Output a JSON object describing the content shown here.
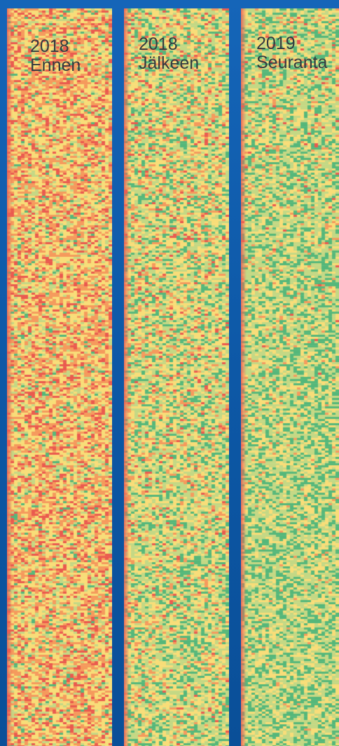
{
  "chart_data": {
    "type": "heatmap",
    "colors": {
      "low": "#ea5a4e",
      "mid_low": "#f59a5c",
      "mid": "#f8dd78",
      "mid_high": "#c4d884",
      "high": "#55b77a",
      "background": "#0f5aa8"
    },
    "panels": [
      {
        "year": "2018",
        "phase": "Ennen",
        "distribution": [
          0.16,
          0.28,
          0.36,
          0.14,
          0.06
        ]
      },
      {
        "year": "2018",
        "phase": "Jälkeen",
        "distribution": [
          0.06,
          0.16,
          0.32,
          0.28,
          0.18
        ]
      },
      {
        "year": "2019",
        "phase": "Seuranta",
        "distribution": [
          0.03,
          0.09,
          0.28,
          0.33,
          0.27
        ]
      }
    ]
  }
}
